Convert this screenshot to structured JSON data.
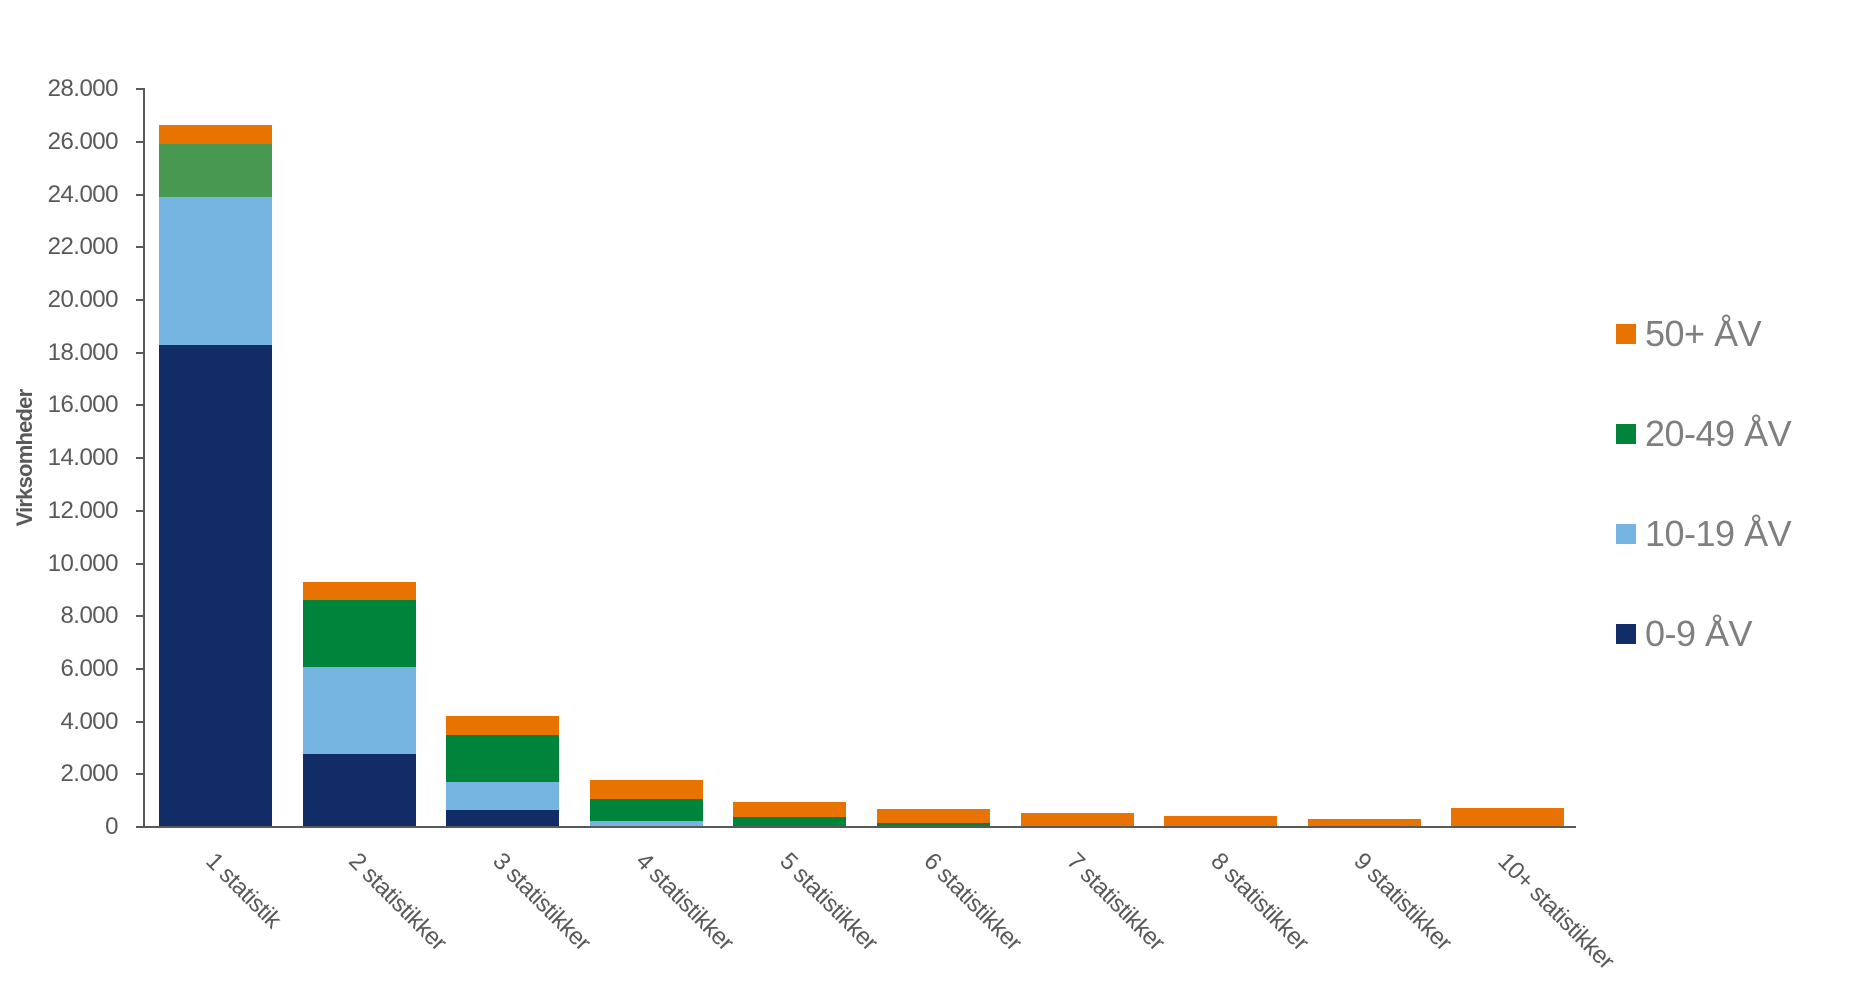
{
  "chart_data": {
    "type": "bar",
    "stacked": true,
    "title": "",
    "xlabel": "",
    "ylabel": "Virksomheder",
    "ylim": [
      0,
      28000
    ],
    "yticks": [
      0,
      2000,
      4000,
      6000,
      8000,
      10000,
      12000,
      14000,
      16000,
      18000,
      20000,
      22000,
      24000,
      26000,
      28000
    ],
    "ytick_labels": [
      "0",
      "2.000",
      "4.000",
      "6.000",
      "8.000",
      "10.000",
      "12.000",
      "14.000",
      "16.000",
      "18.000",
      "20.000",
      "22.000",
      "24.000",
      "26.000",
      "28.000"
    ],
    "grid": false,
    "legend_position": "right",
    "categories": [
      "1 statistik",
      "2 statistikker",
      "3 statistikker",
      "4 statistikker",
      "5 statistikker",
      "6 statistikker",
      "7 statistikker",
      "8 statistikker",
      "9 statistikker",
      "10+ statistikker"
    ],
    "series": [
      {
        "name": "0-9 ÅV",
        "color": "#112c66",
        "values": [
          18300,
          2770,
          650,
          0,
          0,
          0,
          0,
          0,
          0,
          0
        ]
      },
      {
        "name": "10-19 ÅV",
        "color": "#76b4e2",
        "values": [
          5620,
          3300,
          1060,
          210,
          0,
          0,
          0,
          0,
          0,
          0
        ]
      },
      {
        "name": "20-49 ÅV",
        "color": "#00843c",
        "point_colors": {
          "0": "#489852"
        },
        "values": [
          2000,
          2550,
          1780,
          850,
          380,
          150,
          0,
          0,
          0,
          0
        ]
      },
      {
        "name": "50+ ÅV",
        "color": "#e97300",
        "values": [
          720,
          690,
          720,
          730,
          570,
          530,
          530,
          420,
          300,
          720
        ]
      }
    ],
    "totals": [
      26640,
      9310,
      4210,
      1790,
      950,
      680,
      530,
      420,
      300,
      720
    ]
  },
  "legend": {
    "items": [
      {
        "label": "50+ ÅV",
        "color": "#e97300"
      },
      {
        "label": "20-49 ÅV",
        "color": "#00843c"
      },
      {
        "label": "10-19 ÅV",
        "color": "#76b4e2"
      },
      {
        "label": "0-9 ÅV",
        "color": "#112c66"
      }
    ]
  }
}
